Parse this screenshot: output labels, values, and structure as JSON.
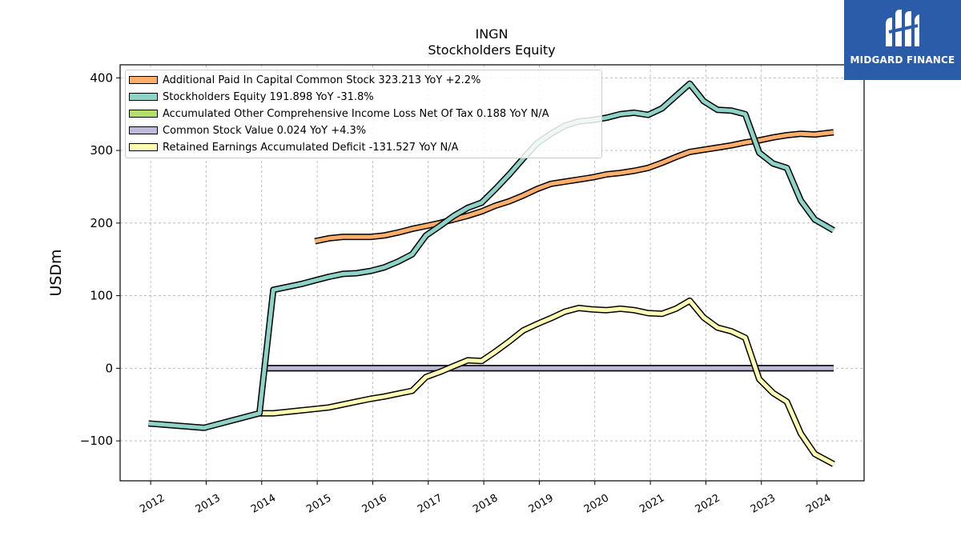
{
  "chart_data": {
    "type": "line",
    "title": "INGN",
    "subtitle": "Stockholders  Equity",
    "ylabel": "USDm",
    "xlabel": "",
    "ylim": [
      -155,
      418
    ],
    "xlim": [
      2011.45,
      2024.85
    ],
    "x_ticks": [
      2012,
      2013,
      2014,
      2015,
      2016,
      2017,
      2018,
      2019,
      2020,
      2021,
      2022,
      2023,
      2024
    ],
    "y_ticks": [
      -100,
      0,
      100,
      200,
      300,
      400
    ],
    "y_tick_labels": [
      "−100",
      "0",
      "100",
      "200",
      "300",
      "400"
    ],
    "grid": true,
    "legend_position": "top-left",
    "series": [
      {
        "name": "Additional Paid In Capital Common Stock  323.213 YoY +2.2%",
        "color": "#fdae6b",
        "points": [
          [
            2014.96,
            175
          ],
          [
            2015.21,
            179
          ],
          [
            2015.46,
            181
          ],
          [
            2015.71,
            181
          ],
          [
            2015.96,
            181
          ],
          [
            2016.21,
            183
          ],
          [
            2016.46,
            187
          ],
          [
            2016.71,
            192
          ],
          [
            2016.96,
            196
          ],
          [
            2017.21,
            200
          ],
          [
            2017.46,
            205
          ],
          [
            2017.71,
            210
          ],
          [
            2017.96,
            216
          ],
          [
            2018.21,
            224
          ],
          [
            2018.46,
            230
          ],
          [
            2018.71,
            238
          ],
          [
            2018.96,
            247
          ],
          [
            2019.21,
            254
          ],
          [
            2019.46,
            257
          ],
          [
            2019.71,
            260
          ],
          [
            2019.96,
            263
          ],
          [
            2020.21,
            267
          ],
          [
            2020.46,
            269
          ],
          [
            2020.71,
            272
          ],
          [
            2020.96,
            276
          ],
          [
            2021.21,
            283
          ],
          [
            2021.46,
            291
          ],
          [
            2021.71,
            298
          ],
          [
            2021.96,
            301
          ],
          [
            2022.21,
            304
          ],
          [
            2022.46,
            307
          ],
          [
            2022.71,
            311
          ],
          [
            2022.96,
            314
          ],
          [
            2023.21,
            318
          ],
          [
            2023.46,
            321
          ],
          [
            2023.71,
            323
          ],
          [
            2023.96,
            322
          ],
          [
            2024.3,
            325
          ]
        ]
      },
      {
        "name": "Stockholders Equity  191.898 YoY -31.8%",
        "color": "#8dd3c7",
        "points": [
          [
            2011.96,
            -76
          ],
          [
            2012.96,
            -82
          ],
          [
            2013.96,
            -62
          ],
          [
            2014.21,
            108
          ],
          [
            2014.46,
            112
          ],
          [
            2014.71,
            116
          ],
          [
            2014.96,
            121
          ],
          [
            2015.21,
            126
          ],
          [
            2015.46,
            130
          ],
          [
            2015.71,
            131
          ],
          [
            2015.96,
            134
          ],
          [
            2016.21,
            139
          ],
          [
            2016.46,
            147
          ],
          [
            2016.71,
            157
          ],
          [
            2016.96,
            183
          ],
          [
            2017.21,
            196
          ],
          [
            2017.46,
            210
          ],
          [
            2017.71,
            221
          ],
          [
            2017.96,
            228
          ],
          [
            2018.21,
            247
          ],
          [
            2018.46,
            267
          ],
          [
            2018.71,
            289
          ],
          [
            2018.96,
            310
          ],
          [
            2019.21,
            323
          ],
          [
            2019.46,
            334
          ],
          [
            2019.71,
            340
          ],
          [
            2019.96,
            342
          ],
          [
            2020.21,
            345
          ],
          [
            2020.46,
            350
          ],
          [
            2020.71,
            352
          ],
          [
            2020.96,
            349
          ],
          [
            2021.21,
            358
          ],
          [
            2021.46,
            375
          ],
          [
            2021.71,
            392
          ],
          [
            2021.96,
            368
          ],
          [
            2022.21,
            356
          ],
          [
            2022.46,
            355
          ],
          [
            2022.71,
            350
          ],
          [
            2022.96,
            297
          ],
          [
            2023.21,
            282
          ],
          [
            2023.46,
            276
          ],
          [
            2023.71,
            231
          ],
          [
            2023.96,
            205
          ],
          [
            2024.3,
            190
          ]
        ]
      },
      {
        "name": "Accumulated Other Comprehensive Income Loss Net Of Tax  0.188 YoY N/A",
        "color": "#b3de69",
        "points": [
          [
            2014.0,
            0
          ],
          [
            2016.0,
            0
          ],
          [
            2018.0,
            0
          ],
          [
            2020.0,
            0
          ],
          [
            2022.0,
            0
          ],
          [
            2024.3,
            0
          ]
        ]
      },
      {
        "name": "Common Stock Value  0.024 YoY +4.3%",
        "color": "#bebada",
        "points": [
          [
            2014.0,
            0
          ],
          [
            2016.0,
            0
          ],
          [
            2018.0,
            0
          ],
          [
            2020.0,
            0
          ],
          [
            2022.0,
            0
          ],
          [
            2024.3,
            0
          ]
        ]
      },
      {
        "name": "Retained Earnings Accumulated Deficit  -131.527 YoY N/A",
        "color": "#ffffb3",
        "points": [
          [
            2013.96,
            -62
          ],
          [
            2014.21,
            -62
          ],
          [
            2014.46,
            -60
          ],
          [
            2014.71,
            -58
          ],
          [
            2014.96,
            -56
          ],
          [
            2015.21,
            -54
          ],
          [
            2015.46,
            -50
          ],
          [
            2015.71,
            -46
          ],
          [
            2015.96,
            -42
          ],
          [
            2016.21,
            -39
          ],
          [
            2016.46,
            -35
          ],
          [
            2016.71,
            -31
          ],
          [
            2016.96,
            -12
          ],
          [
            2017.21,
            -5
          ],
          [
            2017.46,
            3
          ],
          [
            2017.71,
            11
          ],
          [
            2017.96,
            10
          ],
          [
            2018.21,
            23
          ],
          [
            2018.46,
            37
          ],
          [
            2018.71,
            52
          ],
          [
            2018.96,
            61
          ],
          [
            2019.21,
            69
          ],
          [
            2019.46,
            78
          ],
          [
            2019.71,
            83
          ],
          [
            2019.96,
            81
          ],
          [
            2020.21,
            80
          ],
          [
            2020.46,
            82
          ],
          [
            2020.71,
            80
          ],
          [
            2020.96,
            76
          ],
          [
            2021.21,
            75
          ],
          [
            2021.46,
            82
          ],
          [
            2021.71,
            93
          ],
          [
            2021.96,
            70
          ],
          [
            2022.21,
            56
          ],
          [
            2022.46,
            51
          ],
          [
            2022.71,
            42
          ],
          [
            2022.96,
            -15
          ],
          [
            2023.21,
            -34
          ],
          [
            2023.46,
            -46
          ],
          [
            2023.71,
            -90
          ],
          [
            2023.96,
            -118
          ],
          [
            2024.3,
            -132
          ]
        ]
      }
    ]
  },
  "brand": {
    "name": "MIDGARD FINANCE",
    "color": "#2a5caa"
  }
}
